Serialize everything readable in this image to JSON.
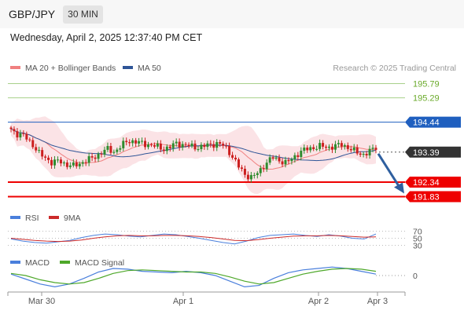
{
  "header": {
    "symbol": "GBP/JPY",
    "timeframe": "30 MIN"
  },
  "datetime": "Wednesday, April 2, 2025 12:37:40 PM CET",
  "colors": {
    "ma20": "#f08080",
    "ma50": "#2f5597",
    "bands": "#fadadd",
    "candle_up": "#2e8b2e",
    "candle_down": "#cc1f1f",
    "support": "#ee0000",
    "resistance_blue": "#1f5fbf",
    "resistance_green": "#6aaa2a",
    "current": "#333333",
    "arrow": "#2f5f9f",
    "rsi": "#4a7fdc",
    "rsi_ma": "#cc2a2a",
    "macd": "#4a7fdc",
    "macd_signal": "#4ea82a"
  },
  "chart_data": [
    {
      "type": "candlestick",
      "legend": [
        {
          "name": "MA 20 + Bollinger Bands",
          "color": "#f08080"
        },
        {
          "name": "MA 50",
          "color": "#2f5597"
        }
      ],
      "source": "Research © 2025 Trading Central",
      "x_ticks": [
        "Mar 30",
        "Apr 1",
        "Apr 2",
        "Apr 3"
      ],
      "y_range": [
        191.6,
        196.2
      ],
      "levels": [
        {
          "value": 195.79,
          "label": "195.79",
          "kind": "resistance-green"
        },
        {
          "value": 195.29,
          "label": "195.29",
          "kind": "resistance-green"
        },
        {
          "value": 194.44,
          "label": "194.44",
          "kind": "resistance-blue"
        },
        {
          "value": 193.39,
          "label": "193.39",
          "kind": "current"
        },
        {
          "value": 192.34,
          "label": "192.34",
          "kind": "support"
        },
        {
          "value": 191.83,
          "label": "191.83",
          "kind": "support"
        }
      ],
      "price_path": [
        194.2,
        194.0,
        193.95,
        193.7,
        193.35,
        193.2,
        193.0,
        193.1,
        192.95,
        192.9,
        193.0,
        193.1,
        193.2,
        193.35,
        193.5,
        193.4,
        193.6,
        193.8,
        193.75,
        193.7,
        193.65,
        193.6,
        193.5,
        193.55,
        193.7,
        193.65,
        193.6,
        193.55,
        193.6,
        193.65,
        193.7,
        193.6,
        193.3,
        192.9,
        192.6,
        192.5,
        192.7,
        193.0,
        193.2,
        193.1,
        193.0,
        193.2,
        193.4,
        193.5,
        193.55,
        193.6,
        193.55,
        193.6,
        193.65,
        193.55,
        193.4,
        193.3,
        193.4,
        193.55
      ],
      "forecast": {
        "from": 193.39,
        "to": 191.83
      }
    },
    {
      "type": "line",
      "name": "RSI panel",
      "legend": [
        {
          "name": "RSI",
          "color": "#4a7fdc"
        },
        {
          "name": "9MA",
          "color": "#cc2a2a"
        }
      ],
      "y_ticks": [
        "70",
        "50",
        "30"
      ],
      "y_range": [
        0,
        100
      ],
      "series": [
        {
          "name": "RSI",
          "values": [
            48,
            42,
            38,
            36,
            40,
            44,
            52,
            58,
            62,
            60,
            56,
            54,
            58,
            62,
            60,
            55,
            50,
            44,
            38,
            34,
            42,
            52,
            58,
            60,
            62,
            58,
            55,
            60,
            56,
            50,
            48,
            62
          ]
        },
        {
          "name": "9MA",
          "values": [
            50,
            47,
            44,
            42,
            41,
            42,
            45,
            50,
            54,
            57,
            58,
            57,
            57,
            58,
            58,
            57,
            55,
            52,
            48,
            44,
            43,
            46,
            50,
            53,
            56,
            57,
            57,
            58,
            57,
            55,
            53,
            54
          ]
        }
      ]
    },
    {
      "type": "line",
      "name": "MACD panel",
      "legend": [
        {
          "name": "MACD",
          "color": "#4a7fdc"
        },
        {
          "name": "MACD Signal",
          "color": "#4ea82a"
        }
      ],
      "y_ticks": [
        "0"
      ],
      "series": [
        {
          "name": "MACD",
          "values": [
            0.02,
            -0.05,
            -0.12,
            -0.16,
            -0.12,
            -0.04,
            0.05,
            0.1,
            0.09,
            0.06,
            0.05,
            0.04,
            0.06,
            0.04,
            0.0,
            -0.08,
            -0.16,
            -0.14,
            -0.04,
            0.04,
            0.08,
            0.1,
            0.12,
            0.1,
            0.06,
            0.02
          ]
        },
        {
          "name": "MACD Signal",
          "values": [
            0.03,
            0.0,
            -0.06,
            -0.1,
            -0.12,
            -0.1,
            -0.04,
            0.03,
            0.07,
            0.08,
            0.07,
            0.06,
            0.05,
            0.05,
            0.03,
            -0.02,
            -0.08,
            -0.12,
            -0.1,
            -0.04,
            0.02,
            0.06,
            0.09,
            0.1,
            0.09,
            0.06
          ]
        }
      ]
    }
  ]
}
